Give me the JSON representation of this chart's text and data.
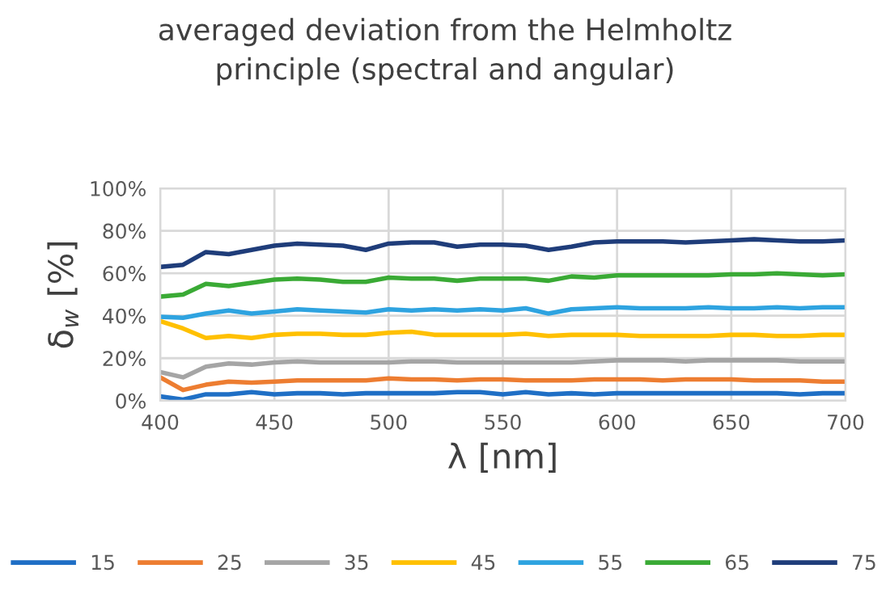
{
  "chart_data": {
    "type": "line",
    "title": "averaged deviation from the Helmholtz\nprinciple (spectral and angular)",
    "xlabel": "λ [nm]",
    "ylabel": "δ$_{w}$ [%]",
    "x": [
      400,
      410,
      420,
      430,
      440,
      450,
      460,
      470,
      480,
      490,
      500,
      510,
      520,
      530,
      540,
      550,
      560,
      570,
      580,
      590,
      600,
      610,
      620,
      630,
      640,
      650,
      660,
      670,
      680,
      690,
      700
    ],
    "series": [
      {
        "name": "15",
        "color": "#1f6fc5",
        "values": [
          2,
          0.5,
          3,
          3,
          4,
          3,
          3.5,
          3.5,
          3,
          3.5,
          3.5,
          3.5,
          3.5,
          4,
          4,
          3,
          4,
          3,
          3.5,
          3,
          3.5,
          3.5,
          3.5,
          3.5,
          3.5,
          3.5,
          3.5,
          3.5,
          3,
          3.5,
          3.5
        ]
      },
      {
        "name": "25",
        "color": "#ed7d31",
        "values": [
          11,
          5,
          7.5,
          9,
          8.5,
          9,
          9.5,
          9.5,
          9.5,
          9.5,
          10.5,
          10,
          10,
          9.5,
          10,
          10,
          9.5,
          9.5,
          9.5,
          10,
          10,
          10,
          9.5,
          10,
          10,
          10,
          9.5,
          9.5,
          9.5,
          9,
          9
        ]
      },
      {
        "name": "35",
        "color": "#a5a5a5",
        "values": [
          13.5,
          11,
          16,
          17.5,
          17,
          18,
          18.5,
          18,
          18,
          18,
          18,
          18.5,
          18.5,
          18,
          18,
          18,
          18,
          18,
          18,
          18.5,
          19,
          19,
          19,
          18.5,
          19,
          19,
          19,
          19,
          18.5,
          18.5,
          18.5
        ]
      },
      {
        "name": "45",
        "color": "#ffc000",
        "values": [
          37.5,
          34,
          29.5,
          30.5,
          29.5,
          31,
          31.5,
          31.5,
          31,
          31,
          32,
          32.5,
          31,
          31,
          31,
          31,
          31.5,
          30.5,
          31,
          31,
          31,
          30.5,
          30.5,
          30.5,
          30.5,
          31,
          31,
          30.5,
          30.5,
          31,
          31
        ]
      },
      {
        "name": "55",
        "color": "#2ea3e0",
        "values": [
          39.5,
          39,
          41,
          42.5,
          41,
          42,
          43,
          42.5,
          42,
          41.5,
          43,
          42.5,
          43,
          42.5,
          43,
          42.5,
          43.5,
          41,
          43,
          43.5,
          44,
          43.5,
          43.5,
          43.5,
          44,
          43.5,
          43.5,
          44,
          43.5,
          44,
          44
        ]
      },
      {
        "name": "65",
        "color": "#3aaa35",
        "values": [
          49,
          50,
          55,
          54,
          55.5,
          57,
          57.5,
          57,
          56,
          56,
          58,
          57.5,
          57.5,
          56.5,
          57.5,
          57.5,
          57.5,
          56.5,
          58.5,
          58,
          59,
          59,
          59,
          59,
          59,
          59.5,
          59.5,
          60,
          59.5,
          59,
          59.5
        ]
      },
      {
        "name": "75",
        "color": "#1f3d7a",
        "values": [
          63,
          64,
          70,
          69,
          71,
          73,
          74,
          73.5,
          73,
          71,
          74,
          74.5,
          74.5,
          72.5,
          73.5,
          73.5,
          73,
          71,
          72.5,
          74.5,
          75,
          75,
          75,
          74.5,
          75,
          75.5,
          76,
          75.5,
          75,
          75,
          75.5
        ]
      }
    ],
    "xlim": [
      400,
      700
    ],
    "xticks": [
      400,
      450,
      500,
      550,
      600,
      650,
      700
    ],
    "ylim": [
      0,
      100
    ],
    "yticks": [
      {
        "value": 0,
        "label": "0%"
      },
      {
        "value": 20,
        "label": "20%"
      },
      {
        "value": 40,
        "label": "40%"
      },
      {
        "value": 60,
        "label": "60%"
      },
      {
        "value": 80,
        "label": "80%"
      },
      {
        "value": 100,
        "label": "100%"
      }
    ],
    "grid": true,
    "legend": "bottom",
    "marker": "none",
    "line_style": "solid"
  }
}
